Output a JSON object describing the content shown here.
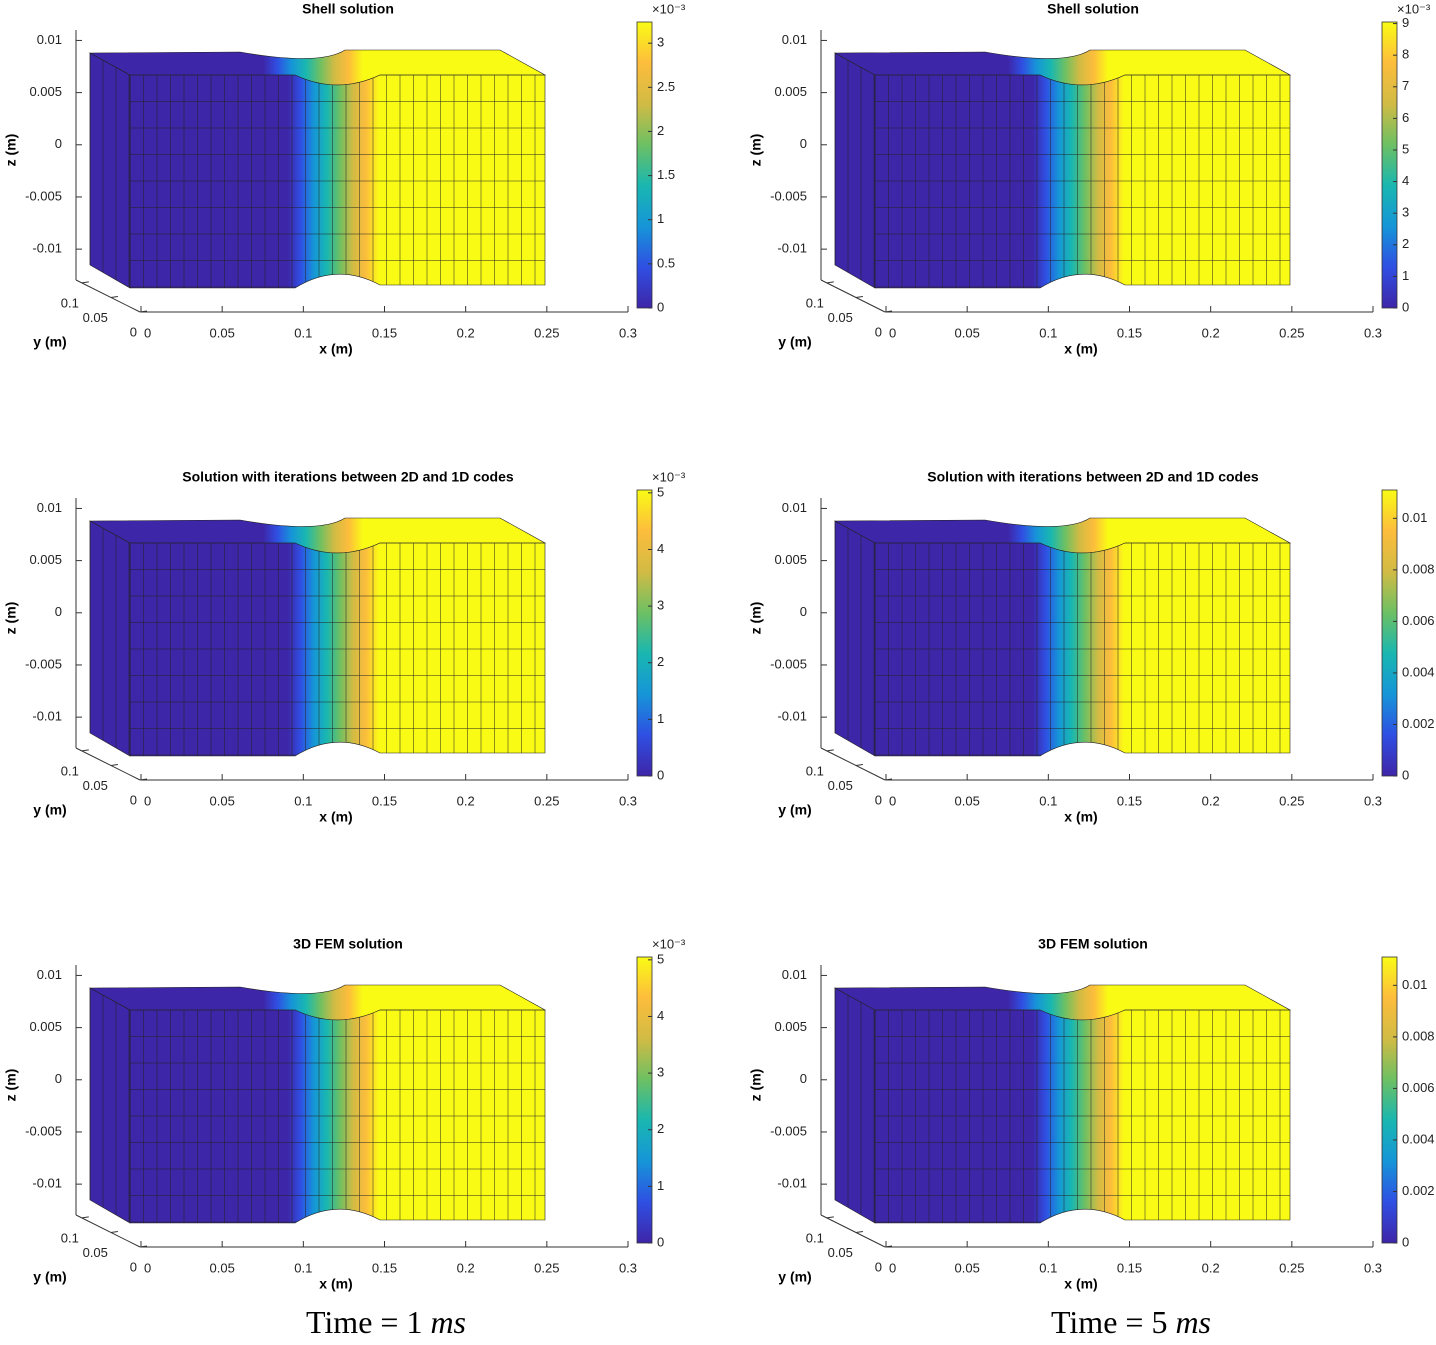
{
  "chart_data": [
    {
      "type": "surface3d",
      "title": "Shell solution",
      "xlabel": "x (m)",
      "ylabel": "y (m)",
      "zlabel": "z (m)",
      "xlim": [
        0,
        0.3
      ],
      "xticks": [
        0,
        0.05,
        0.1,
        0.15,
        0.2,
        0.25,
        0.3
      ],
      "ylim": [
        0,
        0.11
      ],
      "yticks": [
        0,
        0.05,
        0.1
      ],
      "zlim": [
        -0.012,
        0.011
      ],
      "zticks": [
        -0.01,
        -0.005,
        0,
        0.005,
        0.01
      ],
      "clim": [
        0,
        3.24
      ],
      "cticks": [
        0,
        0.5,
        1,
        1.5,
        2,
        2.5,
        3
      ],
      "colorbar_exponent": "×10⁻³",
      "colormap": [
        "#3e26a8",
        "#2f4fe3",
        "#1695d8",
        "#19b7b0",
        "#6dc063",
        "#d1bb44",
        "#fdbd3c",
        "#f9fb15"
      ]
    },
    {
      "type": "surface3d",
      "title": "Shell solution",
      "xlabel": "x (m)",
      "ylabel": "y (m)",
      "zlabel": "z (m)",
      "xlim": [
        0,
        0.3
      ],
      "xticks": [
        0,
        0.05,
        0.1,
        0.15,
        0.2,
        0.25,
        0.3
      ],
      "ylim": [
        0,
        0.11
      ],
      "yticks": [
        0,
        0.05,
        0.1
      ],
      "zlim": [
        -0.012,
        0.011
      ],
      "zticks": [
        -0.01,
        -0.005,
        0,
        0.005,
        0.01
      ],
      "clim": [
        0,
        9.05
      ],
      "cticks": [
        0,
        1,
        2,
        3,
        4,
        5,
        6,
        7,
        8,
        9
      ],
      "colorbar_exponent": "×10⁻³",
      "colormap": [
        "#3e26a8",
        "#2f4fe3",
        "#1695d8",
        "#19b7b0",
        "#6dc063",
        "#d1bb44",
        "#fdbd3c",
        "#f9fb15"
      ]
    },
    {
      "type": "surface3d",
      "title": "Solution with iterations between 2D and 1D codes",
      "xlabel": "x (m)",
      "ylabel": "y (m)",
      "zlabel": "z (m)",
      "xlim": [
        0,
        0.3
      ],
      "xticks": [
        0,
        0.05,
        0.1,
        0.15,
        0.2,
        0.25,
        0.3
      ],
      "ylim": [
        0,
        0.11
      ],
      "yticks": [
        0,
        0.05,
        0.1
      ],
      "zlim": [
        -0.012,
        0.011
      ],
      "zticks": [
        -0.01,
        -0.005,
        0,
        0.005,
        0.01
      ],
      "clim": [
        0,
        5.05
      ],
      "cticks": [
        0,
        1,
        2,
        3,
        4,
        5
      ],
      "colorbar_exponent": "×10⁻³",
      "colormap": [
        "#3e26a8",
        "#2f4fe3",
        "#1695d8",
        "#19b7b0",
        "#6dc063",
        "#d1bb44",
        "#fdbd3c",
        "#f9fb15"
      ]
    },
    {
      "type": "surface3d",
      "title": "Solution with iterations between 2D and 1D codes",
      "xlabel": "x (m)",
      "ylabel": "y (m)",
      "zlabel": "z (m)",
      "xlim": [
        0,
        0.3
      ],
      "xticks": [
        0,
        0.05,
        0.1,
        0.15,
        0.2,
        0.25,
        0.3
      ],
      "ylim": [
        0,
        0.11
      ],
      "yticks": [
        0,
        0.05,
        0.1
      ],
      "zlim": [
        -0.012,
        0.011
      ],
      "zticks": [
        -0.01,
        -0.005,
        0,
        0.005,
        0.01
      ],
      "clim": [
        0,
        0.0111
      ],
      "cticks": [
        0,
        0.002,
        0.004,
        0.006,
        0.008,
        0.01
      ],
      "colormap": [
        "#3e26a8",
        "#2f4fe3",
        "#1695d8",
        "#19b7b0",
        "#6dc063",
        "#d1bb44",
        "#fdbd3c",
        "#f9fb15"
      ]
    },
    {
      "type": "surface3d",
      "title": "3D FEM solution",
      "xlabel": "x (m)",
      "ylabel": "y (m)",
      "zlabel": "z (m)",
      "xlim": [
        0,
        0.3
      ],
      "xticks": [
        0,
        0.05,
        0.1,
        0.15,
        0.2,
        0.25,
        0.3
      ],
      "ylim": [
        0,
        0.11
      ],
      "yticks": [
        0,
        0.05,
        0.1
      ],
      "zlim": [
        -0.012,
        0.011
      ],
      "zticks": [
        -0.01,
        -0.005,
        0,
        0.005,
        0.01
      ],
      "clim": [
        0,
        5.05
      ],
      "cticks": [
        0,
        1,
        2,
        3,
        4,
        5
      ],
      "colorbar_exponent": "×10⁻³",
      "colormap": [
        "#3e26a8",
        "#2f4fe3",
        "#1695d8",
        "#19b7b0",
        "#6dc063",
        "#d1bb44",
        "#fdbd3c",
        "#f9fb15"
      ]
    },
    {
      "type": "surface3d",
      "title": "3D FEM solution",
      "xlabel": "x (m)",
      "ylabel": "y (m)",
      "zlabel": "z (m)",
      "xlim": [
        0,
        0.3
      ],
      "xticks": [
        0,
        0.05,
        0.1,
        0.15,
        0.2,
        0.25,
        0.3
      ],
      "ylim": [
        0,
        0.11
      ],
      "yticks": [
        0,
        0.05,
        0.1
      ],
      "zlim": [
        -0.012,
        0.011
      ],
      "zticks": [
        -0.01,
        -0.005,
        0,
        0.005,
        0.01
      ],
      "clim": [
        0,
        0.0111
      ],
      "cticks": [
        0,
        0.002,
        0.004,
        0.006,
        0.008,
        0.01
      ],
      "colormap": [
        "#3e26a8",
        "#2f4fe3",
        "#1695d8",
        "#19b7b0",
        "#6dc063",
        "#d1bb44",
        "#fdbd3c",
        "#f9fb15"
      ]
    }
  ],
  "captions": [
    {
      "text": "Time = 1",
      "unit": "ms"
    },
    {
      "text": "Time = 5",
      "unit": "ms"
    }
  ]
}
